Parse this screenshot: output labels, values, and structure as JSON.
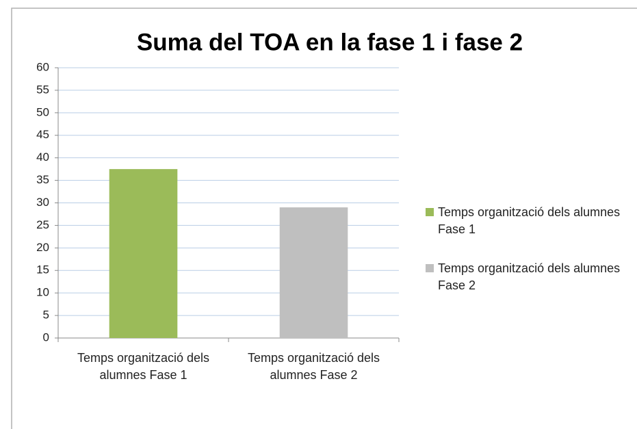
{
  "chart_data": {
    "type": "bar",
    "title": "Suma del TOA en la fase 1 i fase 2",
    "categories": [
      "Temps organització dels alumnes Fase 1",
      "Temps organització dels alumnes Fase 2"
    ],
    "values": [
      37.5,
      29
    ],
    "colors": [
      "#9bbb59",
      "#bfbfbf"
    ],
    "ylim": [
      0,
      60
    ],
    "yticks": [
      0,
      5,
      10,
      15,
      20,
      25,
      30,
      35,
      40,
      45,
      50,
      55,
      60
    ],
    "grid": true,
    "legend": "right"
  }
}
